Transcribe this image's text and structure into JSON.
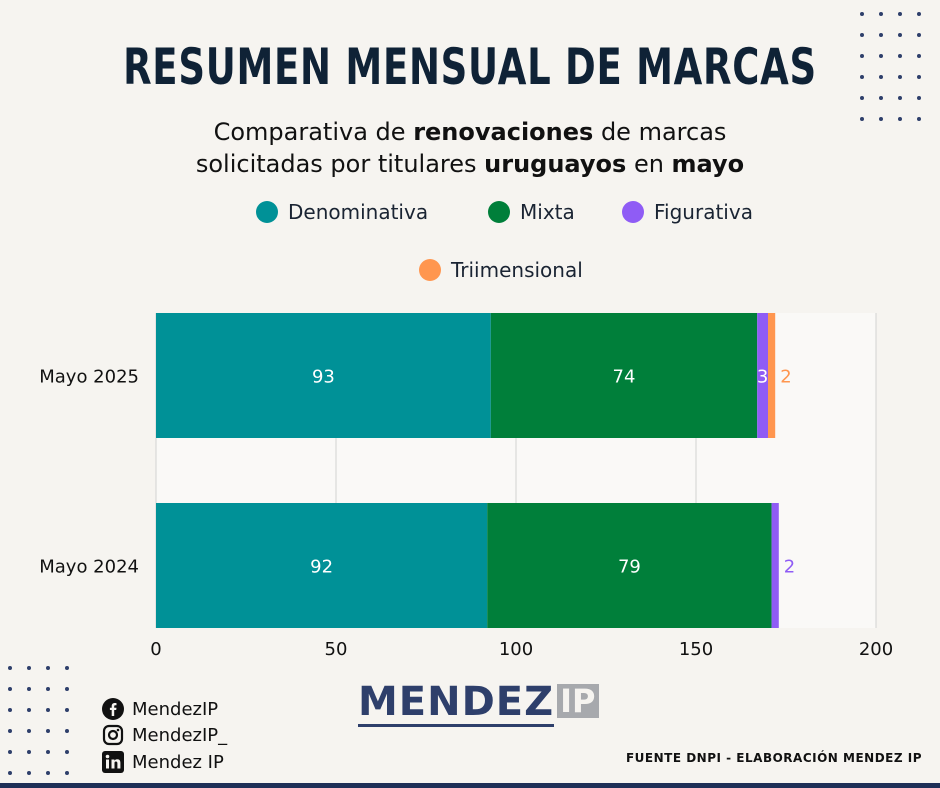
{
  "title": "RESUMEN MENSUAL DE MARCAS",
  "subtitle": {
    "line1": [
      "Comparativa de ",
      "renovaciones",
      " de marcas"
    ],
    "line2": [
      "solicitadas por titulares ",
      "uruguayos",
      " en ",
      "mayo"
    ]
  },
  "colors": {
    "denominativa": "#009197",
    "mixta": "#007f3a",
    "figurativa": "#8f5cf5",
    "tridimensional": "#ff964f",
    "brand": "#2e3f6b"
  },
  "chart_data": {
    "type": "bar",
    "orientation": "horizontal",
    "stacked": true,
    "categories": [
      "Mayo 2025",
      "Mayo 2024"
    ],
    "series": [
      {
        "name": "Denominativa",
        "values": [
          93,
          92
        ]
      },
      {
        "name": "Mixta",
        "values": [
          74,
          79
        ]
      },
      {
        "name": "Figurativa",
        "values": [
          3,
          2
        ]
      },
      {
        "name": "Triimensional",
        "values": [
          2,
          0
        ]
      }
    ],
    "xlim": [
      0,
      200
    ],
    "xticks": [
      0,
      50,
      100,
      150,
      200
    ],
    "grid": true,
    "legend_position": "top"
  },
  "logo": {
    "brand": "MENDEZ",
    "suffix": "IP"
  },
  "social": [
    {
      "icon": "facebook-icon",
      "label": "MendezIP"
    },
    {
      "icon": "instagram-icon",
      "label": "MendezIP_"
    },
    {
      "icon": "linkedin-icon",
      "label": "Mendez IP"
    }
  ],
  "source": "FUENTE DNPI - ELABORACIÓN MENDEZ IP"
}
